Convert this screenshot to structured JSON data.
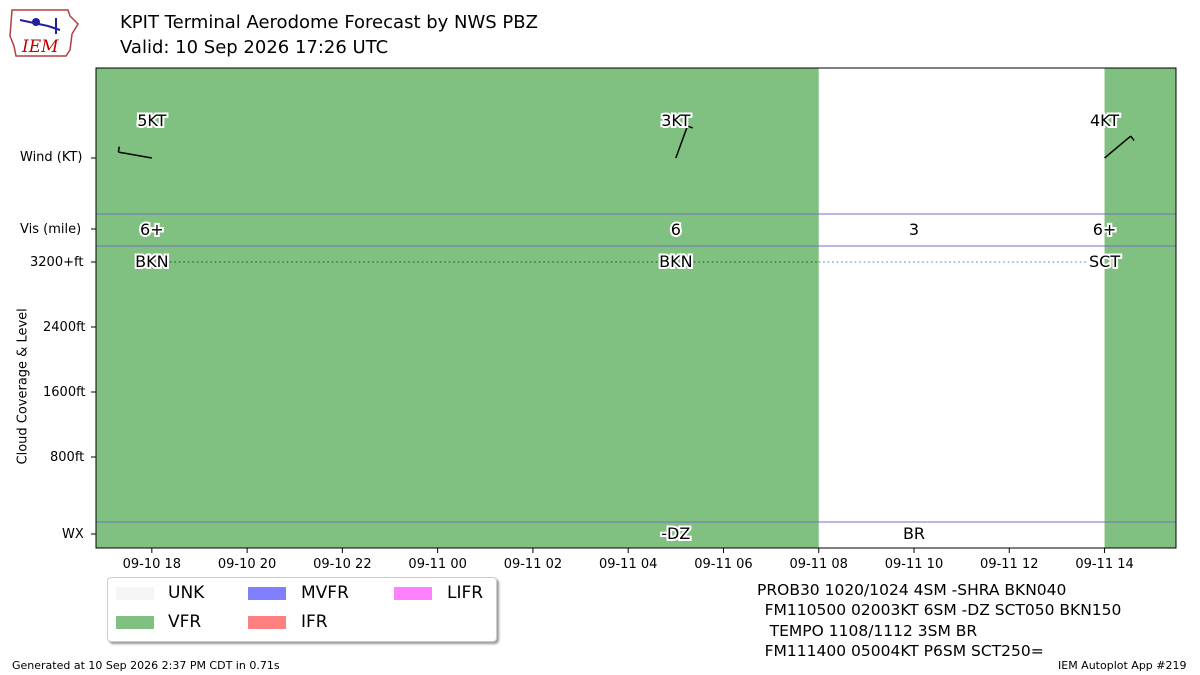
{
  "header": {
    "title_line1": "KPIT Terminal Aerodome Forecast by NWS PBZ",
    "title_line2": "Valid: 10 Sep 2026 17:26 UTC",
    "logo_text": "IEM"
  },
  "axis_labels": {
    "wind": "Wind (KT)",
    "vis": "Vis (mile)",
    "cloud": "Cloud Coverage & Level",
    "wx": "WX",
    "cloud_ticks": [
      "3200+ft",
      "2400ft",
      "1600ft",
      "800ft"
    ]
  },
  "colors": {
    "VFR": "#80c080",
    "UNK": "#f5f5f5",
    "MVFR": "#8080ff",
    "IFR": "#ff8080",
    "LIFR": "#ff80ff",
    "row_line": "#7070c0"
  },
  "chart_data": {
    "type": "timeline",
    "x_range": [
      "2026-09-10 17:00",
      "2026-09-11 15:00"
    ],
    "x_ticks": [
      "09-10 18",
      "09-10 20",
      "09-10 22",
      "09-11 00",
      "09-11 02",
      "09-11 04",
      "09-11 06",
      "09-11 08",
      "09-11 10",
      "09-11 12",
      "09-11 14"
    ],
    "x_tick_hours": [
      1,
      3,
      5,
      7,
      9,
      11,
      13,
      15,
      17,
      19,
      21
    ],
    "category_bands": [
      {
        "start_hour": 0,
        "end_hour": 15,
        "category": "VFR"
      },
      {
        "start_hour": 15,
        "end_hour": 21,
        "category": ""
      },
      {
        "start_hour": 21,
        "end_hour": 22.0,
        "category": "VFR"
      }
    ],
    "periods": [
      {
        "time": "09-10 18",
        "hour": 1.0,
        "wind_speed": 5,
        "wind_dir": 280,
        "wind_label": "5KT",
        "vis": "6+",
        "cloud_label": "BKN",
        "wx": ""
      },
      {
        "time": "09-11 05",
        "hour": 12.0,
        "wind_speed": 3,
        "wind_dir": 20,
        "wind_label": "3KT",
        "vis": "6",
        "cloud_label": "BKN",
        "wx": "-DZ"
      },
      {
        "time": "09-11 10",
        "hour": 17.0,
        "wind_speed": null,
        "wind_dir": null,
        "wind_label": "",
        "vis": "3",
        "cloud_label": "",
        "wx": "BR"
      },
      {
        "time": "09-11 14",
        "hour": 21.0,
        "wind_speed": 4,
        "wind_dir": 50,
        "wind_label": "4KT",
        "vis": "6+",
        "cloud_label": "SCT",
        "wx": ""
      }
    ],
    "cloud_lines": [
      {
        "from_hour": 1.0,
        "to_hour": 12.0,
        "color": "#2f7f2f"
      },
      {
        "from_hour": 12.0,
        "to_hour": 15.0,
        "color": "#2f7f2f"
      },
      {
        "from_hour": 15.0,
        "to_hour": 21.0,
        "color": "#6aaed6"
      }
    ]
  },
  "legend": [
    {
      "label": "UNK",
      "color_key": "UNK"
    },
    {
      "label": "MVFR",
      "color_key": "MVFR"
    },
    {
      "label": "LIFR",
      "color_key": "LIFR"
    },
    {
      "label": "VFR",
      "color_key": "VFR"
    },
    {
      "label": "IFR",
      "color_key": "IFR"
    }
  ],
  "taf_text": [
    "PROB30 1020/1024 4SM -SHRA BKN040",
    "     FM110500 02003KT 6SM -DZ SCT050 BKN150",
    "     TEMPO 1108/1112 3SM BR",
    "     FM111400 05004KT P6SM SCT250="
  ],
  "footer": {
    "generated": "Generated at 10 Sep 2026 2:37 PM CDT in 0.71s",
    "app": "IEM Autoplot App #219"
  }
}
